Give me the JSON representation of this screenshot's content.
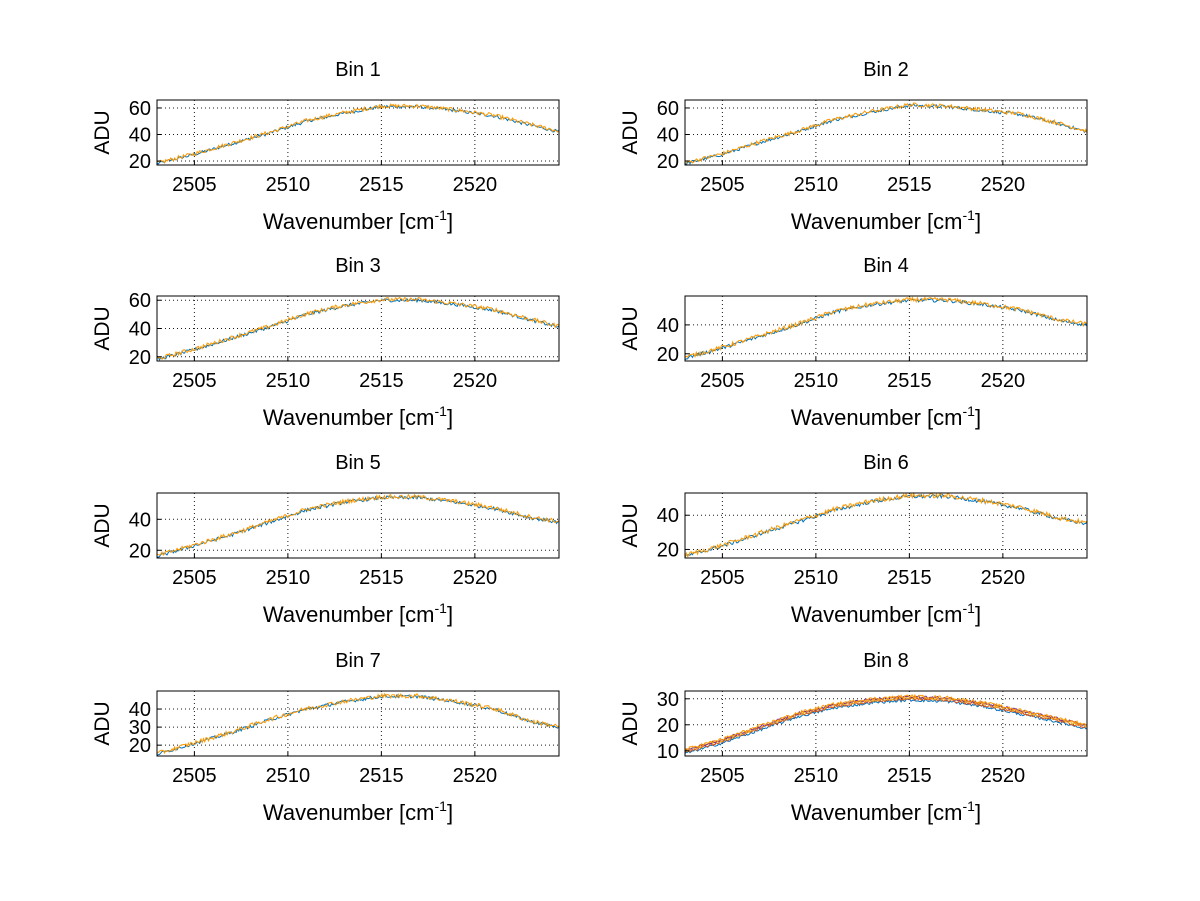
{
  "figure": {
    "background": "#ffffff",
    "series_colors": [
      "#0072bd",
      "#d95319",
      "#edb120",
      "#7e2f8e",
      "#ff9900"
    ]
  },
  "chart_data": [
    {
      "type": "line",
      "title": "Bin 1",
      "xlabel": "Wavenumber [cm",
      "xlabel_sup": "-1",
      "xlabel_close": "]",
      "ylabel": "ADU",
      "xlim": [
        2503,
        2524.5
      ],
      "ylim": [
        17,
        66
      ],
      "xticks": [
        2505,
        2510,
        2515,
        2520
      ],
      "yticks": [
        20,
        40,
        60
      ],
      "grid": true,
      "x": [
        2503,
        2505,
        2507,
        2509,
        2511,
        2513,
        2515,
        2517,
        2519,
        2521,
        2523,
        2524.5
      ],
      "series": [
        {
          "values": [
            18,
            25,
            33,
            41,
            50,
            56,
            61,
            61,
            58,
            54,
            47,
            42
          ],
          "noise": 1.2
        },
        {
          "values": [
            18.5,
            25.5,
            33.5,
            41.5,
            50.5,
            56.5,
            61.5,
            61.5,
            58.5,
            54.5,
            47.5,
            42.5
          ],
          "noise": 1.5
        }
      ]
    },
    {
      "type": "line",
      "title": "Bin 2",
      "xlabel": "Wavenumber [cm",
      "xlabel_sup": "-1",
      "xlabel_close": "]",
      "ylabel": "ADU",
      "xlim": [
        2503,
        2524.5
      ],
      "ylim": [
        17,
        66
      ],
      "xticks": [
        2505,
        2510,
        2515,
        2520
      ],
      "yticks": [
        20,
        40,
        60
      ],
      "grid": true,
      "x": [
        2503,
        2505,
        2507,
        2509,
        2511,
        2513,
        2515,
        2517,
        2519,
        2521,
        2523,
        2524.5
      ],
      "series": [
        {
          "values": [
            18,
            25,
            34,
            42,
            51,
            57,
            62,
            61,
            58,
            55,
            48,
            42
          ],
          "noise": 1.2
        },
        {
          "values": [
            18.5,
            25.5,
            34.5,
            42.5,
            51.5,
            57.5,
            62.5,
            61.5,
            58.5,
            55.5,
            48.5,
            42.5
          ],
          "noise": 1.5
        }
      ]
    },
    {
      "type": "line",
      "title": "Bin 3",
      "xlabel": "Wavenumber [cm",
      "xlabel_sup": "-1",
      "xlabel_close": "]",
      "ylabel": "ADU",
      "xlim": [
        2503,
        2524.5
      ],
      "ylim": [
        17,
        63
      ],
      "xticks": [
        2505,
        2510,
        2515,
        2520
      ],
      "yticks": [
        20,
        40,
        60
      ],
      "grid": true,
      "x": [
        2503,
        2505,
        2507,
        2509,
        2511,
        2513,
        2515,
        2517,
        2519,
        2521,
        2523,
        2524.5
      ],
      "series": [
        {
          "values": [
            18,
            25,
            33,
            41,
            50,
            56,
            60,
            60,
            57,
            53,
            46,
            41
          ],
          "noise": 1.2
        },
        {
          "values": [
            18.5,
            25.5,
            33.5,
            41.5,
            50.5,
            56.5,
            60.5,
            60.5,
            57.5,
            53.5,
            46.5,
            41.5
          ],
          "noise": 1.5
        }
      ]
    },
    {
      "type": "line",
      "title": "Bin 4",
      "xlabel": "Wavenumber [cm",
      "xlabel_sup": "-1",
      "xlabel_close": "]",
      "ylabel": "ADU",
      "xlim": [
        2503,
        2524.5
      ],
      "ylim": [
        15,
        60
      ],
      "xticks": [
        2505,
        2510,
        2515,
        2520
      ],
      "yticks": [
        20,
        40
      ],
      "grid": true,
      "x": [
        2503,
        2505,
        2507,
        2509,
        2511,
        2513,
        2515,
        2517,
        2519,
        2521,
        2523,
        2524.5
      ],
      "series": [
        {
          "values": [
            17,
            24,
            32,
            40,
            49,
            54,
            57,
            57,
            54,
            50,
            43,
            40
          ],
          "noise": 1.2
        },
        {
          "values": [
            17.5,
            24.5,
            32.5,
            40.5,
            49.5,
            54.5,
            57.5,
            57.5,
            54.5,
            50.5,
            43.5,
            40.5
          ],
          "noise": 1.5
        }
      ]
    },
    {
      "type": "line",
      "title": "Bin 5",
      "xlabel": "Wavenumber [cm",
      "xlabel_sup": "-1",
      "xlabel_close": "]",
      "ylabel": "ADU",
      "xlim": [
        2503,
        2524.5
      ],
      "ylim": [
        15,
        57
      ],
      "xticks": [
        2505,
        2510,
        2515,
        2520
      ],
      "yticks": [
        20,
        40
      ],
      "grid": true,
      "x": [
        2503,
        2505,
        2507,
        2509,
        2511,
        2513,
        2515,
        2517,
        2519,
        2521,
        2523,
        2524.5
      ],
      "series": [
        {
          "values": [
            16,
            23,
            30,
            38,
            46,
            51,
            54,
            54,
            51,
            47,
            41,
            38
          ],
          "noise": 1.1
        },
        {
          "values": [
            16.5,
            23.5,
            30.5,
            38.5,
            46.5,
            51.5,
            54.5,
            54.5,
            51.5,
            47.5,
            41.5,
            38.5
          ],
          "noise": 1.4
        }
      ]
    },
    {
      "type": "line",
      "title": "Bin 6",
      "xlabel": "Wavenumber [cm",
      "xlabel_sup": "-1",
      "xlabel_close": "]",
      "ylabel": "ADU",
      "xlim": [
        2503,
        2524.5
      ],
      "ylim": [
        15,
        53
      ],
      "xticks": [
        2505,
        2510,
        2515,
        2520
      ],
      "yticks": [
        20,
        40
      ],
      "grid": true,
      "x": [
        2503,
        2505,
        2507,
        2509,
        2511,
        2513,
        2515,
        2517,
        2519,
        2521,
        2523,
        2524.5
      ],
      "series": [
        {
          "values": [
            16,
            22,
            29,
            36,
            43,
            48,
            51,
            51,
            48,
            44,
            38,
            35
          ],
          "noise": 1.1
        },
        {
          "values": [
            16.5,
            22.5,
            29.5,
            36.5,
            43.5,
            48.5,
            51.5,
            51.5,
            48.5,
            44.5,
            38.5,
            35.5
          ],
          "noise": 1.4
        }
      ]
    },
    {
      "type": "line",
      "title": "Bin 7",
      "xlabel": "Wavenumber [cm",
      "xlabel_sup": "-1",
      "xlabel_close": "]",
      "ylabel": "ADU",
      "xlim": [
        2503,
        2524.5
      ],
      "ylim": [
        14,
        50
      ],
      "xticks": [
        2505,
        2510,
        2515,
        2520
      ],
      "yticks": [
        20,
        30,
        40
      ],
      "grid": true,
      "x": [
        2503,
        2505,
        2507,
        2509,
        2511,
        2513,
        2515,
        2517,
        2519,
        2521,
        2523,
        2524.5
      ],
      "series": [
        {
          "values": [
            15,
            21,
            27,
            34,
            40,
            44,
            47,
            47,
            44,
            40,
            33,
            30
          ],
          "noise": 0.9
        },
        {
          "values": [
            15.3,
            21.3,
            27.3,
            34.3,
            40.3,
            44.3,
            47.3,
            47.3,
            44.3,
            40.3,
            33.3,
            30.3
          ],
          "noise": 1.2
        }
      ]
    },
    {
      "type": "line",
      "title": "Bin 8",
      "xlabel": "Wavenumber [cm",
      "xlabel_sup": "-1",
      "xlabel_close": "]",
      "ylabel": "ADU",
      "xlim": [
        2503,
        2524.5
      ],
      "ylim": [
        8,
        33
      ],
      "xticks": [
        2505,
        2510,
        2515,
        2520
      ],
      "yticks": [
        10,
        20,
        30
      ],
      "grid": true,
      "x": [
        2503,
        2505,
        2507,
        2509,
        2511,
        2513,
        2515,
        2517,
        2519,
        2521,
        2523,
        2524.5
      ],
      "series": [
        {
          "values": [
            9,
            13,
            18,
            23,
            26.5,
            28.5,
            29.5,
            29,
            27,
            24,
            21,
            18.5
          ],
          "noise": 0.5
        },
        {
          "values": [
            9.5,
            13.5,
            18.5,
            23.5,
            27,
            29,
            30,
            29.5,
            27.5,
            24.5,
            21.5,
            19
          ],
          "noise": 0.5
        },
        {
          "values": [
            10,
            14,
            19,
            24,
            27.5,
            29.5,
            30.5,
            30,
            28,
            25,
            22,
            19.5
          ],
          "noise": 0.5
        },
        {
          "values": [
            10.2,
            14.3,
            19.3,
            24.3,
            27.8,
            29.8,
            30.8,
            30.3,
            28.3,
            25.3,
            22.3,
            19.8
          ],
          "noise": 0.5
        },
        {
          "values": [
            10.5,
            14.5,
            19.5,
            24.5,
            28,
            30,
            31,
            30.5,
            28.5,
            25.5,
            22.5,
            20
          ],
          "noise": 0.6
        }
      ]
    }
  ]
}
